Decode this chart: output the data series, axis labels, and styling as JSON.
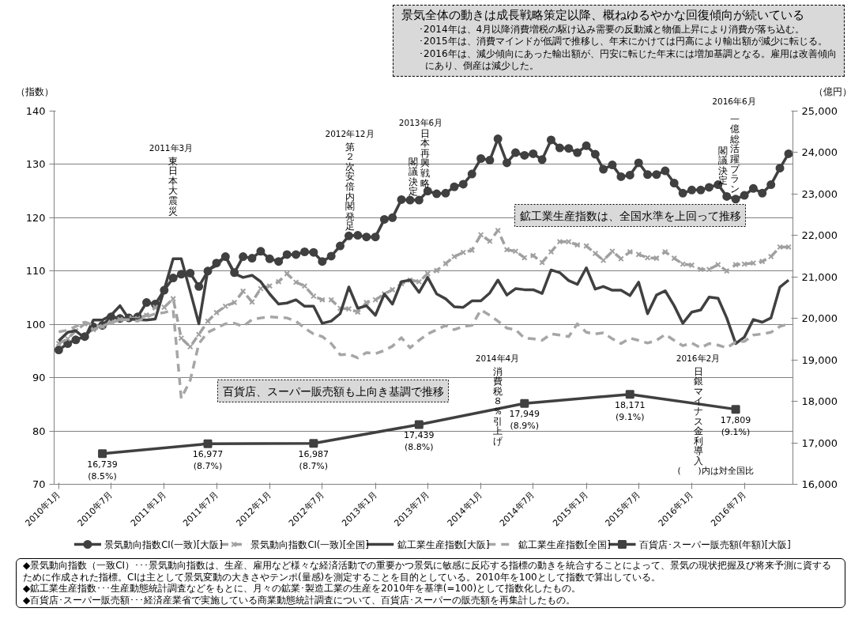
{
  "chart_data": {
    "type": "line",
    "x": [
      "2010-01",
      "2010-02",
      "2010-03",
      "2010-04",
      "2010-05",
      "2010-06",
      "2010-07",
      "2010-08",
      "2010-09",
      "2010-10",
      "2010-11",
      "2010-12",
      "2011-01",
      "2011-02",
      "2011-03",
      "2011-04",
      "2011-05",
      "2011-06",
      "2011-07",
      "2011-08",
      "2011-09",
      "2011-10",
      "2011-11",
      "2011-12",
      "2012-01",
      "2012-02",
      "2012-03",
      "2012-04",
      "2012-05",
      "2012-06",
      "2012-07",
      "2012-08",
      "2012-09",
      "2012-10",
      "2012-11",
      "2012-12",
      "2013-01",
      "2013-02",
      "2013-03",
      "2013-04",
      "2013-05",
      "2013-06",
      "2013-07",
      "2013-08",
      "2013-09",
      "2013-10",
      "2013-11",
      "2013-12",
      "2014-01",
      "2014-02",
      "2014-03",
      "2014-04",
      "2014-05",
      "2014-06",
      "2014-07",
      "2014-08",
      "2014-09",
      "2014-10",
      "2014-11",
      "2014-12",
      "2015-01",
      "2015-02",
      "2015-03",
      "2015-04",
      "2015-05",
      "2015-06",
      "2015-07",
      "2015-08",
      "2015-09",
      "2015-10",
      "2015-11",
      "2015-12",
      "2016-01",
      "2016-02",
      "2016-03",
      "2016-04",
      "2016-05",
      "2016-06",
      "2016-07",
      "2016-08",
      "2016-09",
      "2016-10",
      "2016-11",
      "2016-12"
    ],
    "series": [
      {
        "name": "景気動向指数CI(一致)[大阪]",
        "color": "#404040",
        "marker": "circle",
        "line_style": "solid",
        "values": [
          95.2,
          96.4,
          97.1,
          97.7,
          99.5,
          99.8,
          101.4,
          101.1,
          101.2,
          101.4,
          104.1,
          103.8,
          106.4,
          108.7,
          109.4,
          109.6,
          107.1,
          110.0,
          111.5,
          112.7,
          109.7,
          112.7,
          112.4,
          113.7,
          112.3,
          111.8,
          113.1,
          113.1,
          113.6,
          113.5,
          111.8,
          112.8,
          114.7,
          116.6,
          116.7,
          116.4,
          116.4,
          119.7,
          120.0,
          123.4,
          123.3,
          123.3,
          125.0,
          124.5,
          124.6,
          125.8,
          126.3,
          128.2,
          131.1,
          130.8,
          134.8,
          130.3,
          132.2,
          131.7,
          132.0,
          130.9,
          134.6,
          133.1,
          133.0,
          132.2,
          133.5,
          131.9,
          129.1,
          129.9,
          127.7,
          128.0,
          130.3,
          128.1,
          128.1,
          128.8,
          126.5,
          124.6,
          125.2,
          125.2,
          125.7,
          126.2,
          124.0,
          123.5,
          124.2,
          125.5,
          124.6,
          126.2,
          129.3,
          132.0
        ]
      },
      {
        "name": "景気動向指数CI(一致)[全国]",
        "color": "#a0a0a0",
        "marker": "cross",
        "line_style": "dashed",
        "values": [
          96.4,
          97.3,
          98.8,
          100.1,
          99.0,
          99.6,
          100.4,
          100.9,
          101.2,
          101.1,
          101.7,
          103.2,
          103.2,
          104.8,
          97.4,
          95.8,
          98.1,
          100.6,
          102.2,
          103.4,
          104.1,
          106.2,
          104.2,
          106.7,
          107.2,
          108.0,
          109.5,
          107.9,
          107.2,
          105.3,
          104.6,
          104.6,
          103.0,
          102.9,
          102.3,
          104.1,
          104.6,
          105.7,
          106.5,
          107.6,
          108.3,
          108.0,
          109.5,
          110.1,
          111.4,
          112.7,
          113.5,
          113.9,
          116.8,
          115.6,
          117.6,
          114.0,
          113.7,
          112.5,
          112.9,
          111.6,
          113.6,
          115.5,
          115.5,
          114.9,
          114.7,
          113.3,
          112.0,
          113.7,
          112.3,
          113.6,
          113.1,
          112.5,
          112.4,
          113.6,
          112.4,
          111.3,
          111.1,
          110.3,
          110.3,
          111.2,
          110.0,
          111.2,
          111.3,
          111.5,
          111.8,
          112.7,
          114.5,
          114.5
        ]
      },
      {
        "name": "鉱工業生産指数[大阪]",
        "color": "#404040",
        "marker": "none",
        "line_style": "solid",
        "values": [
          96.9,
          98.5,
          98.8,
          97.4,
          100.8,
          100.8,
          101.7,
          103.5,
          101.0,
          100.9,
          100.8,
          101.0,
          106.5,
          112.3,
          112.3,
          106.2,
          100.1,
          110.2,
          111.0,
          112.8,
          109.5,
          108.8,
          109.2,
          108.0,
          105.7,
          103.8,
          104.0,
          104.6,
          103.4,
          103.4,
          100.2,
          100.6,
          102.0,
          107.0,
          103.0,
          103.5,
          101.7,
          105.7,
          103.8,
          108.0,
          108.3,
          106.0,
          108.8,
          105.7,
          104.8,
          103.3,
          103.2,
          104.4,
          104.4,
          105.9,
          108.3,
          105.5,
          106.7,
          106.5,
          106.5,
          105.8,
          110.2,
          109.7,
          108.2,
          107.5,
          110.6,
          106.6,
          107.1,
          106.4,
          106.4,
          105.4,
          107.9,
          102.0,
          105.5,
          106.3,
          103.5,
          100.2,
          102.3,
          102.7,
          105.1,
          104.9,
          101.2,
          96.4,
          97.6,
          100.9,
          100.4,
          101.2,
          107.0,
          108.3
        ]
      },
      {
        "name": "鉱工業生産指数[全国]",
        "color": "#a6a6a6",
        "marker": "none",
        "line_style": "dashed",
        "values": [
          98.6,
          98.9,
          99.6,
          100.4,
          99.9,
          99.5,
          100.2,
          100.9,
          100.9,
          100.6,
          101.4,
          102.0,
          102.2,
          102.7,
          86.1,
          89.5,
          96.4,
          98.5,
          99.3,
          100.1,
          100.2,
          99.6,
          100.9,
          101.2,
          101.4,
          101.3,
          101.2,
          100.6,
          99.3,
          98.2,
          97.7,
          96.4,
          94.3,
          94.4,
          93.7,
          94.7,
          94.5,
          95.1,
          95.9,
          97.5,
          95.6,
          97.0,
          98.2,
          99.0,
          99.8,
          99.0,
          99.6,
          99.8,
          102.7,
          101.7,
          100.6,
          99.3,
          99.0,
          97.4,
          97.3,
          97.0,
          98.2,
          98.0,
          97.7,
          100.1,
          98.5,
          98.2,
          98.4,
          97.3,
          96.4,
          97.4,
          97.0,
          96.5,
          97.0,
          98.1,
          97.0,
          96.0,
          96.5,
          95.6,
          96.4,
          96.1,
          95.6,
          96.7,
          96.8,
          98.0,
          98.2,
          98.5,
          99.6,
          100.1
        ]
      },
      {
        "name": "百貨店･スーパー販売額(年額)[大阪]",
        "color": "#404040",
        "marker": "square",
        "line_style": "solid",
        "axis": "y2",
        "x": [
          "2010-06",
          "2011-06",
          "2012-06",
          "2013-06",
          "2014-06",
          "2015-06",
          "2016-06"
        ],
        "values": [
          16739,
          16977,
          16987,
          17439,
          17949,
          18171,
          17809
        ],
        "value_labels": [
          "16,739\n(8.5%)",
          "16,977\n(8.7%)",
          "16,987\n(8.7%)",
          "17,439\n(8.8%)",
          "17,949\n(8.9%)",
          "18,171\n(9.1%)",
          "17,809\n(9.1%)"
        ]
      }
    ],
    "ylabel": "（指数）",
    "y2label": "（億円）",
    "xlim": [
      "2009-12-16",
      "2016-12-16"
    ],
    "xticks": [
      {
        "value": "2010-01",
        "label": "2010年1月"
      },
      {
        "value": "2010-07",
        "label": "2010年7月"
      },
      {
        "value": "2011-01",
        "label": "2011年1月"
      },
      {
        "value": "2011-07",
        "label": "2011年7月"
      },
      {
        "value": "2012-01",
        "label": "2012年1月"
      },
      {
        "value": "2012-07",
        "label": "2012年7月"
      },
      {
        "value": "2013-01",
        "label": "2013年1月"
      },
      {
        "value": "2013-07",
        "label": "2013年7月"
      },
      {
        "value": "2014-01",
        "label": "2014年1月"
      },
      {
        "value": "2014-07",
        "label": "2014年7月"
      },
      {
        "value": "2015-01",
        "label": "2015年1月"
      },
      {
        "value": "2015-07",
        "label": "2015年7月"
      },
      {
        "value": "2016-01",
        "label": "2016年1月"
      },
      {
        "value": "2016-07",
        "label": "2016年7月"
      }
    ],
    "ylim": [
      70,
      140
    ],
    "yticks": [
      70,
      80,
      90,
      100,
      110,
      120,
      130,
      140
    ],
    "y2lim": [
      16000,
      25000
    ],
    "y2ticks": [
      {
        "value": 16000,
        "label": "16,000"
      },
      {
        "value": 17000,
        "label": "17,000"
      },
      {
        "value": 18000,
        "label": "18,000"
      },
      {
        "value": 19000,
        "label": "19,000"
      },
      {
        "value": 20000,
        "label": "20,000"
      },
      {
        "value": 21000,
        "label": "21,000"
      },
      {
        "value": 22000,
        "label": "22,000"
      },
      {
        "value": 23000,
        "label": "23,000"
      },
      {
        "value": 24000,
        "label": "24,000"
      },
      {
        "value": 25000,
        "label": "25,000"
      }
    ],
    "grid": "y",
    "legend": "bottom",
    "annotations": [
      "景気全体の動きは成長戦略策定以降、概ねゆるやかな回復傾向が続いている",
      "･2014年は、4月以降消費増税の駆け込み需要の反動減と物価上昇により消費が落ち込む。",
      "･2015年は、消費マインドが低調で推移し、年末にかけては円高により輸出額が減少に転じる。",
      "･2016年は、減少傾向にあった輸出額が、円安に転じた年末には増加基調となる。雇用は改善傾向にあり、倒産は減少した。",
      "2011年3月",
      "東日本大震災",
      "2012年12月",
      "第２次安倍内閣発足",
      "2013年6月",
      "日本再興戦略",
      "閣議決定",
      "2016年6月",
      "一億総活躍プラン",
      "閣議決定",
      "鉱工業生産指数は、全国水準を上回って推移",
      "2014年4月",
      "消費税８％引上げ",
      "2016年2月",
      "日銀マイナス金利導入",
      "百貨店、スーパー販売額も上向き基調で推移",
      "(　　)内は対全国比",
      "◆景気動向指数（一致CI）･･･景気動向指数は、生産、雇用など様々な経済活動での重要かつ景気に敏感に反応する指標の動きを統合することによって、景気の現状把握及び将来予測に資するために作成された指標。CIは主として景気変動の大きさやテンポ(量感)を測定することを目的としている。2010年を100として指数で算出している。",
      "◆鉱工業生産指数･･･生産動態統計調査などをもとに、月々の鉱業･製造工業の生産を2010年を基準(=100)として指数化したもの。",
      "◆百貨店･スーパー販売額･･･経済産業省で実施している商業動態統計調査について、百貨店･スーパーの販売額を再集計したもの。"
    ]
  }
}
